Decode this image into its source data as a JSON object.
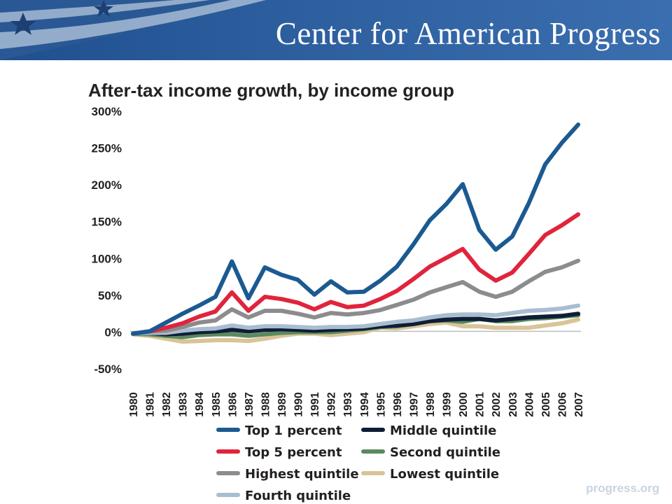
{
  "header": {
    "org_name": "Center for American Progress",
    "footer_url": "progress.org"
  },
  "chart_data": {
    "type": "line",
    "title": "After-tax income growth, by income group",
    "xlabel": "",
    "ylabel": "",
    "categories": [
      "1980",
      "1981",
      "1982",
      "1983",
      "1984",
      "1985",
      "1986",
      "1987",
      "1988",
      "1989",
      "1990",
      "1991",
      "1992",
      "1993",
      "1994",
      "1995",
      "1996",
      "1997",
      "1998",
      "1999",
      "2000",
      "2001",
      "2002",
      "2003",
      "2004",
      "2005",
      "2006",
      "2007"
    ],
    "x_tick_labels": [
      "1980",
      "1981",
      "1982",
      "1983",
      "1984",
      "1985",
      "1986",
      "1987",
      "1988",
      "1989",
      "1990",
      "1991",
      "1992",
      "1993",
      "1994",
      "1995",
      "1996",
      "1997",
      "1998",
      "1999",
      "2000",
      "2001",
      "2002",
      "2003",
      "2004",
      "2005",
      "2006",
      "2007"
    ],
    "ylim": [
      -50,
      300
    ],
    "y_ticks": [
      -50,
      0,
      50,
      100,
      150,
      200,
      250,
      300
    ],
    "y_tick_labels": [
      "-50%",
      "0%",
      "50%",
      "100%",
      "150%",
      "200%",
      "250%",
      "300%"
    ],
    "grid": false,
    "legend_position": "bottom",
    "series": [
      {
        "name": "Top 1 percent",
        "color": "#1b5a91",
        "values": [
          -3,
          0,
          12,
          24,
          35,
          47,
          95,
          45,
          87,
          77,
          70,
          50,
          68,
          53,
          54,
          69,
          88,
          118,
          151,
          173,
          200,
          138,
          111,
          129,
          174,
          227,
          256,
          281
        ]
      },
      {
        "name": "Top 5 percent",
        "color": "#e0243c",
        "values": [
          -3,
          0,
          5,
          11,
          20,
          27,
          53,
          28,
          47,
          44,
          39,
          30,
          40,
          33,
          35,
          44,
          55,
          71,
          88,
          100,
          112,
          84,
          69,
          80,
          105,
          131,
          144,
          159
        ]
      },
      {
        "name": "Highest quintile",
        "color": "#8c8b8e",
        "values": [
          -3,
          0,
          1,
          6,
          12,
          15,
          30,
          19,
          28,
          28,
          24,
          19,
          25,
          23,
          25,
          29,
          36,
          43,
          53,
          60,
          67,
          54,
          47,
          54,
          68,
          81,
          87,
          96
        ]
      },
      {
        "name": "Fourth quintile",
        "color": "#a9bdd1",
        "values": [
          -3,
          -2,
          -2,
          1,
          3,
          4,
          8,
          5,
          7,
          7,
          6,
          5,
          6,
          6,
          7,
          10,
          13,
          15,
          19,
          22,
          23,
          23,
          22,
          25,
          28,
          29,
          31,
          35
        ]
      },
      {
        "name": "Middle quintile",
        "color": "#0f1d36",
        "values": [
          -3,
          -2,
          -4,
          -3,
          -1,
          0,
          2,
          0,
          2,
          3,
          2,
          1,
          2,
          3,
          4,
          7,
          8,
          10,
          14,
          16,
          17,
          17,
          15,
          17,
          19,
          20,
          21,
          24
        ]
      },
      {
        "name": "Second quintile",
        "color": "#5a8a5e",
        "values": [
          -3,
          -4,
          -6,
          -8,
          -5,
          -4,
          -4,
          -6,
          -4,
          -2,
          -1,
          -1,
          -1,
          1,
          3,
          6,
          7,
          10,
          14,
          15,
          13,
          17,
          14,
          14,
          17,
          18,
          20,
          22
        ]
      },
      {
        "name": "Lowest quintile",
        "color": "#d9c498",
        "values": [
          -4,
          -6,
          -10,
          -14,
          -13,
          -12,
          -12,
          -13,
          -10,
          -6,
          -3,
          -3,
          -5,
          -3,
          -1,
          5,
          4,
          7,
          10,
          12,
          7,
          7,
          5,
          5,
          5,
          8,
          11,
          16
        ]
      }
    ],
    "legend_order": [
      "Top 1 percent",
      "Middle quintile",
      "Top 5 percent",
      "Second quintile",
      "Highest quintile",
      "Lowest quintile",
      "Fourth quintile"
    ]
  }
}
